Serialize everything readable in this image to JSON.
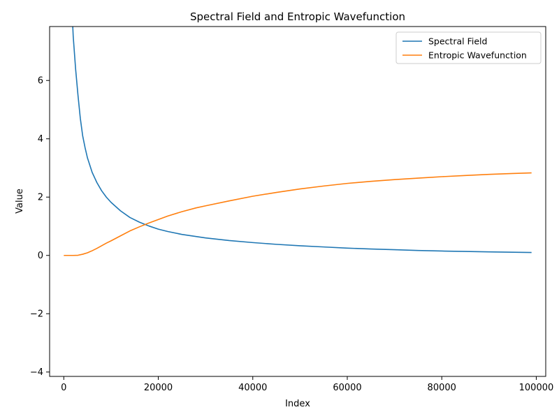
{
  "chart_data": {
    "type": "line",
    "title": "Spectral Field and Entropic Wavefunction",
    "xlabel": "Index",
    "ylabel": "Value",
    "xlim": [
      -3000,
      102000
    ],
    "ylim": [
      -4.15,
      7.85
    ],
    "xticks": [
      0,
      20000,
      40000,
      60000,
      80000,
      100000
    ],
    "yticks": [
      -4,
      -2,
      0,
      2,
      4,
      6
    ],
    "ytick_labels": [
      "−4",
      "−2",
      "0",
      "2",
      "4",
      "6"
    ],
    "grid": false,
    "legend": "top-right",
    "series": [
      {
        "name": "Spectral Field",
        "color": "#1f77b4",
        "x": [
          1800,
          2000,
          2500,
          3000,
          3500,
          4000,
          4500,
          5000,
          6000,
          7000,
          8000,
          9000,
          10000,
          12000,
          14000,
          16000,
          18000,
          20000,
          22000,
          25000,
          30000,
          35000,
          40000,
          45000,
          50000,
          55000,
          60000,
          65000,
          70000,
          75000,
          80000,
          85000,
          90000,
          95000,
          99000
        ],
        "y": [
          8.2,
          7.5,
          6.4,
          5.5,
          4.7,
          4.1,
          3.7,
          3.35,
          2.85,
          2.5,
          2.22,
          2.0,
          1.82,
          1.53,
          1.3,
          1.14,
          1.01,
          0.9,
          0.82,
          0.72,
          0.6,
          0.51,
          0.44,
          0.38,
          0.33,
          0.29,
          0.25,
          0.22,
          0.195,
          0.17,
          0.15,
          0.135,
          0.12,
          0.11,
          0.1
        ]
      },
      {
        "name": "Entropic Wavefunction",
        "color": "#ff7f0e",
        "x": [
          0,
          1000,
          2000,
          3000,
          4000,
          5000,
          6000,
          7000,
          8000,
          9000,
          10000,
          12000,
          14000,
          16000,
          18000,
          20000,
          22000,
          25000,
          28000,
          30000,
          35000,
          40000,
          45000,
          50000,
          55000,
          60000,
          65000,
          70000,
          75000,
          80000,
          85000,
          90000,
          95000,
          99000
        ],
        "y": [
          0,
          0,
          0,
          0.005,
          0.04,
          0.09,
          0.16,
          0.24,
          0.33,
          0.42,
          0.5,
          0.67,
          0.84,
          0.98,
          1.11,
          1.23,
          1.35,
          1.5,
          1.63,
          1.7,
          1.87,
          2.03,
          2.16,
          2.28,
          2.38,
          2.47,
          2.54,
          2.6,
          2.65,
          2.7,
          2.74,
          2.78,
          2.81,
          2.83
        ]
      }
    ]
  }
}
